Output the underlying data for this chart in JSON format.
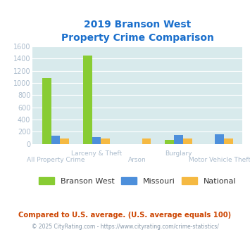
{
  "title_line1": "2019 Branson West",
  "title_line2": "Property Crime Comparison",
  "title_color": "#1a6fcc",
  "categories": [
    "All Property Crime",
    "Larceny & Theft",
    "Arson",
    "Burglary",
    "Motor Vehicle Theft"
  ],
  "top_labels": [
    "",
    "Larceny & Theft",
    "",
    "Burglary",
    ""
  ],
  "bot_labels": [
    "All Property Crime",
    "",
    "Arson",
    "",
    "Motor Vehicle Theft"
  ],
  "branson_west": [
    1075,
    1450,
    0,
    65,
    0
  ],
  "missouri": [
    130,
    115,
    0,
    140,
    155
  ],
  "national": [
    90,
    85,
    90,
    90,
    85
  ],
  "bar_colors": [
    "#88cc33",
    "#4d8fdb",
    "#f5b942"
  ],
  "ylim": [
    0,
    1600
  ],
  "yticks": [
    0,
    200,
    400,
    600,
    800,
    1000,
    1200,
    1400,
    1600
  ],
  "plot_bg": "#d8eaec",
  "legend_labels": [
    "Branson West",
    "Missouri",
    "National"
  ],
  "footer_text": "Compared to U.S. average. (U.S. average equals 100)",
  "footer_color": "#cc4400",
  "copyright_text": "© 2025 CityRating.com - https://www.cityrating.com/crime-statistics/",
  "copyright_color": "#8899aa",
  "grid_color": "#ffffff",
  "ytick_color": "#aabbcc",
  "xlabel_color": "#aabbcc",
  "bar_width": 0.22
}
